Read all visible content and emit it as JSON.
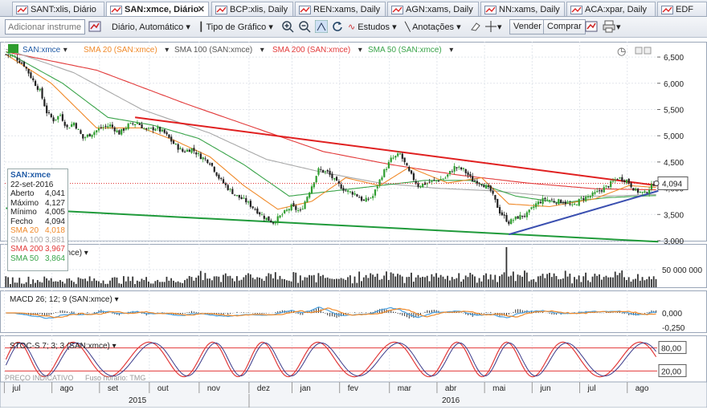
{
  "tabs": [
    {
      "label": "SANT:xlis, Diário",
      "active": false
    },
    {
      "label": "SAN:xmce, Diário",
      "active": true
    },
    {
      "label": "BCP:xlis, Daily",
      "active": false
    },
    {
      "label": "REN:xams, Daily",
      "active": false
    },
    {
      "label": "AGN:xams, Daily",
      "active": false
    },
    {
      "label": "NN:xams, Daily",
      "active": false
    },
    {
      "label": "ACA:xpar, Daily",
      "active": false
    },
    {
      "label": "EDF",
      "active": false
    }
  ],
  "toolbar": {
    "symbol_placeholder": "Adicionar instrume",
    "period": "Diário, Automático",
    "chart_type": "Tipo de Gráfico",
    "studies": "Estudos",
    "annotations": "Anotações",
    "sell": "Vender",
    "buy": "Comprar"
  },
  "colors": {
    "up": "#2e9d2e",
    "down": "#222222",
    "sma20": "#f08a2a",
    "sma100": "#a8a8a8",
    "sma200": "#e23a3a",
    "sma50": "#3aa44a",
    "trend_red": "#e02020",
    "trend_green": "#1f9a3a",
    "trend_blue": "#3a4fb0"
  },
  "legend": {
    "symbol": "SAN:xmce",
    "sma20": "SMA 20 (SAN:xmce)",
    "sma100": "SMA 100 (SAN:xmce)",
    "sma200": "SMA 200 (SAN:xmce)",
    "sma50": "SMA 50 (SAN:xmce)"
  },
  "infobox": {
    "title": "SAN:xmce",
    "date": "22-set-2016",
    "rows": [
      {
        "label": "Aberto",
        "value": "4,041",
        "color": "#222"
      },
      {
        "label": "Máximo",
        "value": "4,127",
        "color": "#222"
      },
      {
        "label": "Mínimo",
        "value": "4,005",
        "color": "#222"
      },
      {
        "label": "Fecho",
        "value": "4,094",
        "color": "#222"
      },
      {
        "label": "SMA 20",
        "value": "4,018",
        "color": "#f08a2a"
      },
      {
        "label": "SMA 100",
        "value": "3,881",
        "color": "#a8a8a8"
      },
      {
        "label": "SMA 200",
        "value": "3,967",
        "color": "#e23a3a"
      },
      {
        "label": "SMA 50",
        "value": "3,864",
        "color": "#3aa44a"
      }
    ]
  },
  "chart_data": [
    {
      "type": "candlestick",
      "title": "SAN:xmce",
      "period_labels": [
        "jul",
        "ago",
        "set",
        "out",
        "nov",
        "dez",
        "jan",
        "fev",
        "mar",
        "abr",
        "mai",
        "jun",
        "jul",
        "ago",
        "set"
      ],
      "year_labels": [
        "2015",
        "2016"
      ],
      "y_ticks": [
        "6,500",
        "6,000",
        "5,500",
        "5,000",
        "4,500",
        "4,000",
        "3,500",
        "3,000"
      ],
      "ylim": [
        3.0,
        6.7
      ],
      "last_price": "4,094",
      "close_path": [
        [
          0,
          6.55
        ],
        [
          4,
          6.5
        ],
        [
          8,
          6.35
        ],
        [
          12,
          6.05
        ],
        [
          15,
          5.85
        ],
        [
          18,
          5.45
        ],
        [
          21,
          5.3
        ],
        [
          24,
          5.4
        ],
        [
          27,
          5.15
        ],
        [
          30,
          5.25
        ],
        [
          34,
          4.95
        ],
        [
          38,
          5.05
        ],
        [
          42,
          5.15
        ],
        [
          46,
          5.2
        ],
        [
          50,
          5.05
        ],
        [
          54,
          5.2
        ],
        [
          58,
          5.25
        ],
        [
          62,
          5.1
        ],
        [
          66,
          5.15
        ],
        [
          70,
          5.05
        ],
        [
          74,
          4.85
        ],
        [
          78,
          4.7
        ],
        [
          82,
          4.75
        ],
        [
          86,
          4.6
        ],
        [
          90,
          4.5
        ],
        [
          94,
          4.2
        ],
        [
          98,
          4.0
        ],
        [
          102,
          3.85
        ],
        [
          106,
          3.75
        ],
        [
          110,
          3.6
        ],
        [
          114,
          3.45
        ],
        [
          118,
          3.35
        ],
        [
          122,
          3.5
        ],
        [
          126,
          3.65
        ],
        [
          130,
          3.55
        ],
        [
          134,
          3.95
        ],
        [
          138,
          4.35
        ],
        [
          142,
          4.3
        ],
        [
          146,
          4.1
        ],
        [
          150,
          3.95
        ],
        [
          154,
          3.9
        ],
        [
          158,
          3.75
        ],
        [
          162,
          3.85
        ],
        [
          166,
          4.25
        ],
        [
          170,
          4.55
        ],
        [
          174,
          4.65
        ],
        [
          178,
          4.3
        ],
        [
          182,
          4.05
        ],
        [
          186,
          4.1
        ],
        [
          190,
          4.15
        ],
        [
          194,
          4.2
        ],
        [
          198,
          4.4
        ],
        [
          202,
          4.35
        ],
        [
          206,
          4.15
        ],
        [
          210,
          4.1
        ],
        [
          214,
          3.95
        ],
        [
          218,
          3.55
        ],
        [
          222,
          3.35
        ],
        [
          226,
          3.45
        ],
        [
          230,
          3.5
        ],
        [
          234,
          3.7
        ],
        [
          238,
          3.8
        ],
        [
          242,
          3.75
        ],
        [
          246,
          3.75
        ],
        [
          250,
          3.65
        ],
        [
          254,
          3.8
        ],
        [
          258,
          3.85
        ],
        [
          262,
          3.95
        ],
        [
          266,
          4.05
        ],
        [
          270,
          4.2
        ],
        [
          274,
          4.15
        ],
        [
          278,
          3.95
        ],
        [
          282,
          3.9
        ],
        [
          286,
          4.09
        ]
      ],
      "sma20": [
        [
          0,
          6.55
        ],
        [
          20,
          6.0
        ],
        [
          40,
          5.15
        ],
        [
          60,
          5.15
        ],
        [
          75,
          4.9
        ],
        [
          90,
          4.6
        ],
        [
          105,
          4.05
        ],
        [
          120,
          3.6
        ],
        [
          135,
          3.75
        ],
        [
          150,
          4.2
        ],
        [
          165,
          4.05
        ],
        [
          178,
          4.4
        ],
        [
          195,
          4.1
        ],
        [
          210,
          4.2
        ],
        [
          222,
          3.7
        ],
        [
          240,
          3.65
        ],
        [
          260,
          3.8
        ],
        [
          275,
          4.05
        ],
        [
          286,
          4.02
        ]
      ],
      "sma50": [
        [
          0,
          6.6
        ],
        [
          25,
          6.0
        ],
        [
          45,
          5.35
        ],
        [
          65,
          5.2
        ],
        [
          85,
          4.95
        ],
        [
          105,
          4.45
        ],
        [
          125,
          3.85
        ],
        [
          145,
          3.95
        ],
        [
          165,
          4.05
        ],
        [
          185,
          4.15
        ],
        [
          205,
          4.15
        ],
        [
          225,
          3.85
        ],
        [
          245,
          3.72
        ],
        [
          265,
          3.82
        ],
        [
          286,
          3.86
        ]
      ],
      "sma100": [
        [
          0,
          6.65
        ],
        [
          30,
          6.2
        ],
        [
          60,
          5.5
        ],
        [
          90,
          5.05
        ],
        [
          115,
          4.55
        ],
        [
          140,
          4.3
        ],
        [
          165,
          4.1
        ],
        [
          190,
          4.0
        ],
        [
          215,
          3.95
        ],
        [
          240,
          3.85
        ],
        [
          265,
          3.85
        ],
        [
          286,
          3.88
        ]
      ],
      "sma200": [
        [
          0,
          6.6
        ],
        [
          40,
          6.25
        ],
        [
          80,
          5.6
        ],
        [
          110,
          5.15
        ],
        [
          140,
          4.7
        ],
        [
          170,
          4.45
        ],
        [
          200,
          4.25
        ],
        [
          230,
          4.1
        ],
        [
          260,
          3.99
        ],
        [
          286,
          3.97
        ]
      ],
      "trendlines": [
        {
          "name": "resistance",
          "from": [
            57,
            5.35
          ],
          "to": [
            288,
            4.05
          ],
          "color": "#e02020"
        },
        {
          "name": "support",
          "from": [
            0,
            3.62
          ],
          "to": [
            288,
            2.98
          ],
          "color": "#1f9a3a"
        },
        {
          "name": "uptrend",
          "from": [
            222,
            3.12
          ],
          "to": [
            288,
            3.95
          ],
          "color": "#3a4fb0"
        }
      ]
    },
    {
      "type": "bar",
      "title": "Volume (SAN:xmce)",
      "y_ticks": [
        "50 000 000"
      ],
      "spike_index": 221
    },
    {
      "type": "line",
      "title": "MACD 26; 12; 9 (SAN:xmce)",
      "y_ticks": [
        "0,000",
        "-0,250"
      ]
    },
    {
      "type": "line",
      "title": "STOC-S 7; 3; 3 (SAN:xmce)",
      "y_ticks": [
        "80,00",
        "20,00"
      ],
      "levels": [
        80,
        20
      ]
    }
  ],
  "footer": {
    "watermark": "PREÇO INDICATIVO",
    "timezone": "Fuso horário: TMG"
  }
}
